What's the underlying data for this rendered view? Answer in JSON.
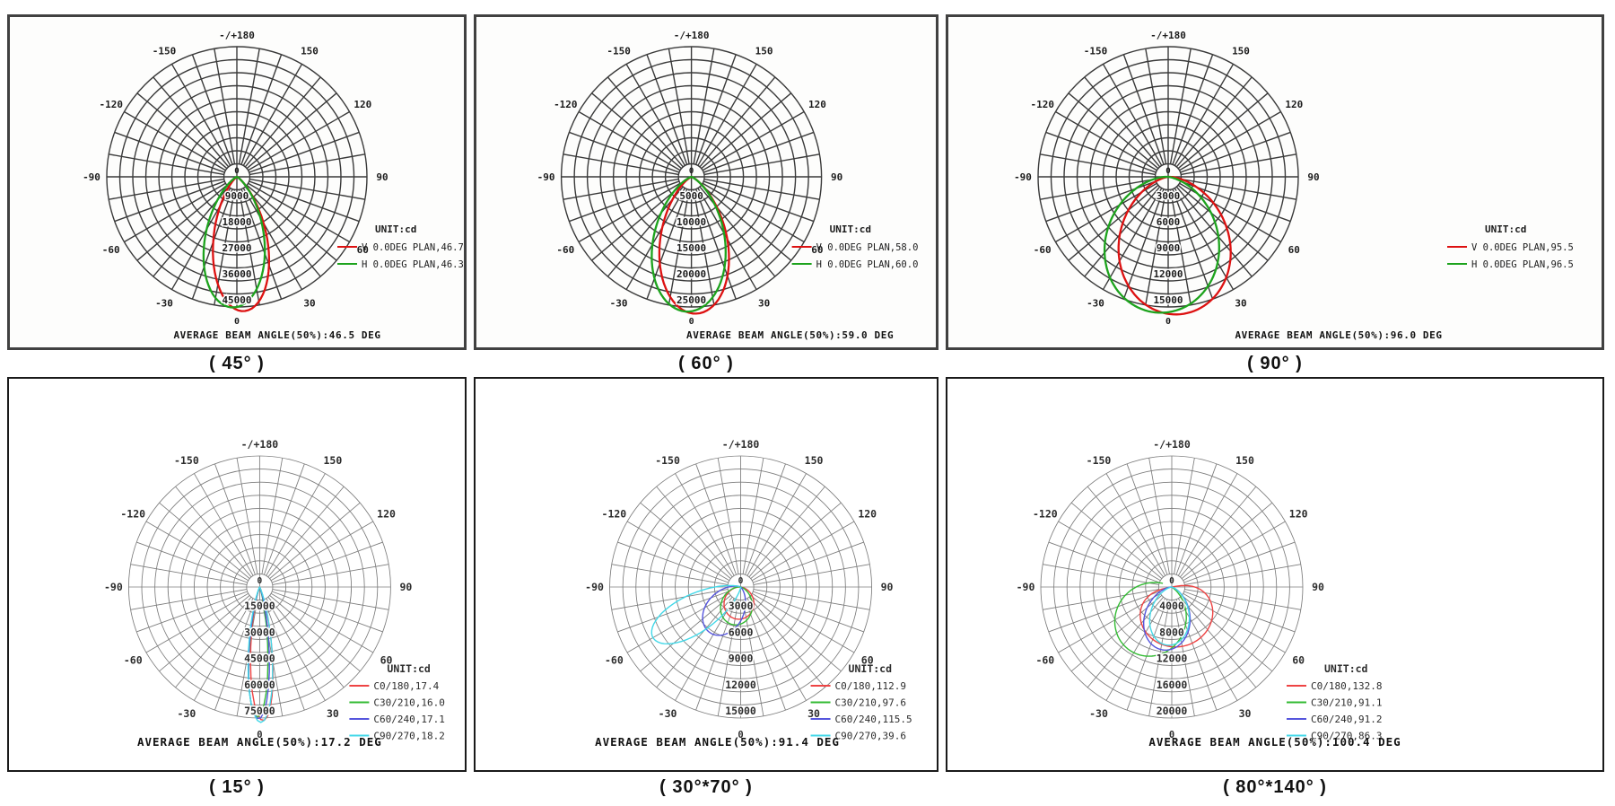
{
  "polar": {
    "unit_label": "UNIT:cd",
    "top_label": "-/+180",
    "bottom_label": "0",
    "center_label": "0",
    "angles": [
      {
        "a": 150,
        "label": "150"
      },
      {
        "a": 120,
        "label": "120"
      },
      {
        "a": 90,
        "label": "90"
      },
      {
        "a": 60,
        "label": "60"
      },
      {
        "a": 30,
        "label": "30"
      },
      {
        "a": -30,
        "label": "-30"
      },
      {
        "a": -60,
        "label": "-60"
      },
      {
        "a": -90,
        "label": "-90"
      },
      {
        "a": -120,
        "label": "-120"
      },
      {
        "a": -150,
        "label": "-150"
      }
    ]
  },
  "chart_data": [
    {
      "type": "line",
      "polar": true,
      "grid": true,
      "legend_position": "right",
      "panel": "top-left",
      "caption": "( 45° )",
      "average_text": "AVERAGE BEAM ANGLE(50%):46.5 DEG",
      "radial_ticks": [
        9000,
        18000,
        27000,
        36000,
        45000
      ],
      "max_cd": 45000,
      "series": [
        {
          "name": "V 0.0DEG PLAN,46.7",
          "color": "#dd1111",
          "beam_deg": 46.7,
          "peak_cd": 46500,
          "tilt_deg": 3,
          "shape_n": 8.0
        },
        {
          "name": "H 0.0DEG PLAN,46.3",
          "color": "#1da31d",
          "beam_deg": 46.3,
          "peak_cd": 45200,
          "tilt_deg": -2,
          "shape_n": 6.2
        }
      ]
    },
    {
      "type": "line",
      "polar": true,
      "grid": true,
      "legend_position": "right",
      "panel": "top-center",
      "caption": "( 60° )",
      "average_text": "AVERAGE BEAM ANGLE(50%):59.0 DEG",
      "radial_ticks": [
        5000,
        10000,
        15000,
        20000,
        25000
      ],
      "max_cd": 25000,
      "series": [
        {
          "name": "V 0.0DEG PLAN,58.0",
          "color": "#dd1111",
          "beam_deg": 58.0,
          "peak_cd": 26300,
          "tilt_deg": 2,
          "shape_n": 5.2
        },
        {
          "name": "H 0.0DEG PLAN,60.0",
          "color": "#1da31d",
          "beam_deg": 60.0,
          "peak_cd": 25900,
          "tilt_deg": -2,
          "shape_n": 4.4
        }
      ]
    },
    {
      "type": "line",
      "polar": true,
      "grid": true,
      "legend_position": "right",
      "panel": "top-right",
      "caption": "( 90° )",
      "average_text": "AVERAGE BEAM ANGLE(50%):96.0 DEG",
      "radial_ticks": [
        3000,
        6000,
        9000,
        12000,
        15000
      ],
      "max_cd": 15000,
      "series": [
        {
          "name": "V 0.0DEG PLAN,95.5",
          "color": "#dd1111",
          "beam_deg": 95.5,
          "peak_cd": 15900,
          "tilt_deg": 5,
          "shape_n": 1.75
        },
        {
          "name": "H 0.0DEG PLAN,96.5",
          "color": "#1da31d",
          "beam_deg": 96.5,
          "peak_cd": 15700,
          "tilt_deg": -5,
          "shape_n": 1.6
        }
      ]
    },
    {
      "type": "line",
      "polar": true,
      "grid": true,
      "legend_position": "right",
      "panel": "bottom-left",
      "caption": "( 15° )",
      "average_text": "AVERAGE BEAM ANGLE(50%):17.2 DEG",
      "radial_ticks": [
        15000,
        30000,
        45000,
        60000,
        75000
      ],
      "max_cd": 75000,
      "series": [
        {
          "name": "C0/180,17.4",
          "color": "#ee4444",
          "beam_deg": 17.4,
          "peak_cd": 76500,
          "tilt_deg": 1.5,
          "shape_n": 52
        },
        {
          "name": "C30/210,16.0",
          "color": "#33bb33",
          "beam_deg": 16.0,
          "peak_cd": 74500,
          "tilt_deg": -1,
          "shape_n": 66
        },
        {
          "name": "C60/240,17.1",
          "color": "#5555dd",
          "beam_deg": 17.1,
          "peak_cd": 75500,
          "tilt_deg": -0.5,
          "shape_n": 58
        },
        {
          "name": "C90/270,18.2",
          "color": "#44d8e8",
          "beam_deg": 18.2,
          "peak_cd": 77500,
          "tilt_deg": 0.5,
          "shape_n": 44
        }
      ]
    },
    {
      "type": "line",
      "polar": true,
      "grid": true,
      "legend_position": "right",
      "panel": "bottom-center",
      "caption": "( 30°*70° )",
      "average_text": "AVERAGE BEAM ANGLE(50%):91.4 DEG",
      "radial_ticks": [
        3000,
        6000,
        9000,
        12000,
        15000
      ],
      "max_cd": 15000,
      "series": [
        {
          "name": "C0/180,112.9",
          "color": "#ee4444",
          "beam_deg": 112.9,
          "peak_cd": 3700,
          "tilt_deg": -6,
          "shape_n": 1.25
        },
        {
          "name": "C30/210,97.6",
          "color": "#33bb33",
          "beam_deg": 97.6,
          "peak_cd": 4400,
          "tilt_deg": -12,
          "shape_n": 1.7
        },
        {
          "name": "C60/240,115.5",
          "color": "#5555dd",
          "beam_deg": 115.5,
          "peak_cd": 6300,
          "tilt_deg": -34,
          "shape_n": 2.6
        },
        {
          "name": "C90/270,39.6",
          "color": "#44d8e8",
          "beam_deg": 39.6,
          "peak_cd": 11600,
          "tilt_deg": -60,
          "shape_n": 9.5
        }
      ]
    },
    {
      "type": "line",
      "polar": true,
      "grid": true,
      "legend_position": "right",
      "panel": "bottom-right",
      "caption": "( 80°*140° )",
      "average_text": "AVERAGE BEAM ANGLE(50%):100.4 DEG",
      "radial_ticks": [
        4000,
        8000,
        12000,
        16000,
        20000
      ],
      "max_cd": 20000,
      "series": [
        {
          "name": "C0/180,132.8",
          "color": "#ee4444",
          "beam_deg": 132.8,
          "peak_cd": 9200,
          "tilt_deg": 10,
          "shape_n": 0.55
        },
        {
          "name": "C30/210,91.1",
          "color": "#33bb33",
          "beam_deg": 91.1,
          "peak_cd": 11600,
          "tilt_deg": -33,
          "shape_n": 1.25
        },
        {
          "name": "C60/240,91.2",
          "color": "#5555dd",
          "beam_deg": 91.2,
          "peak_cd": 9700,
          "tilt_deg": -8,
          "shape_n": 2.3
        },
        {
          "name": "C90/270,86.3",
          "color": "#44d8e8",
          "beam_deg": 86.3,
          "peak_cd": 8900,
          "tilt_deg": -4,
          "shape_n": 2.7
        }
      ]
    }
  ]
}
